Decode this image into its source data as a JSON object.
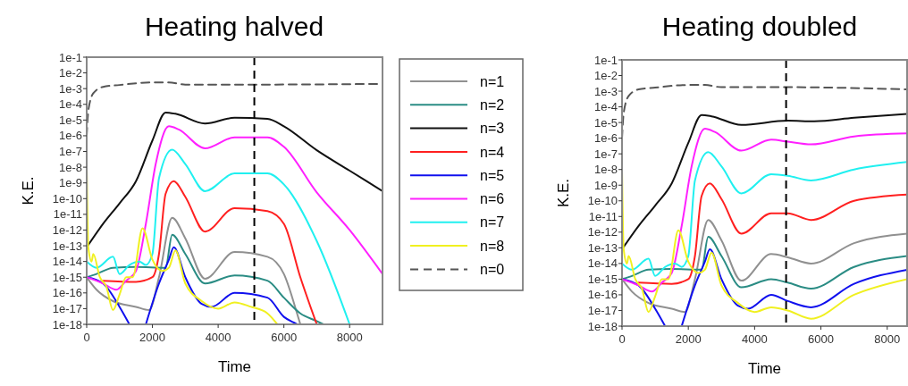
{
  "chart_data": [
    {
      "type": "line",
      "title": "Heating halved",
      "xlabel": "Time",
      "ylabel": "K.E.",
      "log": "y",
      "legend": "right",
      "xlim": [
        0,
        9000
      ],
      "xticks": [
        0,
        2000,
        4000,
        6000,
        8000
      ],
      "ylim": [
        1e-18,
        0.1
      ],
      "yticks": [
        {
          "value": 0.1,
          "label": "1e-1"
        },
        {
          "value": 0.01,
          "label": "1e-2"
        },
        {
          "value": 0.001,
          "label": "1e-3"
        },
        {
          "value": 0.0001,
          "label": "1e-4"
        },
        {
          "value": 1e-05,
          "label": "1e-5"
        },
        {
          "value": 1e-06,
          "label": "1e-6"
        },
        {
          "value": 1e-07,
          "label": "1e-7"
        },
        {
          "value": 1e-08,
          "label": "1e-8"
        },
        {
          "value": 1e-09,
          "label": "1e-9"
        },
        {
          "value": 1e-10,
          "label": "1e-10"
        },
        {
          "value": 1e-11,
          "label": "1e-11"
        },
        {
          "value": 1e-12,
          "label": "1e-12"
        },
        {
          "value": 1e-13,
          "label": "1e-13"
        },
        {
          "value": 1e-14,
          "label": "1e-14"
        },
        {
          "value": 1e-15,
          "label": "1e-15"
        },
        {
          "value": 1e-16,
          "label": "1e-16"
        },
        {
          "value": 1e-17,
          "label": "1e-17"
        },
        {
          "value": 1e-18,
          "label": "1e-18"
        }
      ],
      "ref_lines": [
        {
          "axis": "x",
          "value": 5100,
          "color": "#000000",
          "line_style": "dashed"
        }
      ],
      "series": [
        {
          "name": "n=1",
          "color": "#909090",
          "x": [
            0,
            300,
            800,
            1500,
            1900,
            2200,
            2600,
            3000,
            3600,
            4500,
            5500,
            6000,
            6400,
            6500
          ],
          "values": [
            1e-15,
            1.6e-16,
            3e-17,
            1.3e-17,
            8e-18,
            1e-15,
            6e-12,
            3e-13,
            8e-16,
            4e-14,
            2e-14,
            1.6e-15,
            5e-18,
            1e-18
          ]
        },
        {
          "name": "n=2",
          "color": "#2a8c84",
          "x": [
            0,
            300,
            800,
            1500,
            2400,
            2600,
            3000,
            3600,
            4500,
            5500,
            6000,
            6500,
            7000,
            7200
          ],
          "values": [
            1e-15,
            1.6e-15,
            4e-15,
            4.5e-15,
            4e-15,
            5e-13,
            3e-14,
            4e-16,
            1.3e-15,
            6e-16,
            5e-17,
            5e-18,
            1.6e-18,
            1e-18
          ]
        },
        {
          "name": "n=3",
          "color": "#111111",
          "x": [
            0,
            500,
            1000,
            1500,
            2000,
            2400,
            2700,
            3600,
            4500,
            5500,
            6000,
            7000,
            8000,
            9000
          ],
          "values": [
            8e-14,
            2.5e-12,
            5e-11,
            1.3e-09,
            5e-07,
            3e-05,
            2.5e-05,
            6e-06,
            1.4e-05,
            1.2e-05,
            4e-06,
            1.2e-07,
            6e-09,
            3e-10
          ]
        },
        {
          "name": "n=4",
          "color": "#ff2020",
          "x": [
            500,
            1500,
            2000,
            2200,
            2400,
            2650,
            3000,
            3600,
            4500,
            5500,
            6000,
            6500,
            7000
          ],
          "values": [
            6e-16,
            5e-16,
            1e-15,
            3e-14,
            2e-10,
            1.3e-09,
            1.3e-10,
            8e-13,
            2.5e-11,
            1.6e-11,
            2.5e-12,
            1e-15,
            1e-18
          ]
        },
        {
          "name": "n=5",
          "color": "#1010ee",
          "x": [
            0,
            500,
            1000,
            1300,
            1550,
            1800,
            2200,
            2500,
            2650,
            3000,
            3500,
            3800,
            4500,
            5500,
            6000,
            6300,
            6400
          ],
          "values": [
            1e-15,
            4e-16,
            1.3e-17,
            1e-18,
            null,
            1e-18,
            4e-16,
            1.3e-14,
            8e-14,
            1e-15,
            2e-17,
            1.3e-17,
            1e-16,
            5e-17,
            3e-18,
            1.3e-18,
            1e-18
          ]
        },
        {
          "name": "n=6",
          "color": "#ff20ff",
          "x": [
            0,
            500,
            900,
            1200,
            1500,
            1800,
            2100,
            2500,
            2800,
            3600,
            4500,
            5500,
            6000,
            7000,
            8000,
            9000
          ],
          "values": [
            1e-15,
            4e-16,
            1.6e-16,
            6e-16,
            2.5e-15,
            2.5e-12,
            1.6e-08,
            4e-06,
            2.5e-06,
            1.6e-07,
            8e-07,
            8e-07,
            2e-07,
            2.5e-10,
            1e-12,
            1.6e-15
          ]
        },
        {
          "name": "n=7",
          "color": "#20f0f0",
          "x": [
            0,
            300,
            800,
            1000,
            1300,
            1600,
            1800,
            2000,
            2200,
            2600,
            3000,
            3600,
            4500,
            5500,
            6000,
            7000,
            8000
          ],
          "values": [
            1e-14,
            4e-15,
            2e-14,
            1.6e-15,
            6e-15,
            1e-14,
            6e-15,
            3e-14,
            2e-09,
            1.3e-07,
            1.6e-08,
            3e-10,
            4e-09,
            4e-09,
            8e-10,
            2e-13,
            1e-18
          ]
        },
        {
          "name": "n=8",
          "color": "#f0f020",
          "x": [
            0,
            50,
            150,
            200,
            400,
            600,
            800,
            1000,
            1200,
            1400,
            1700,
            2000,
            2300,
            2500,
            2700,
            3000,
            3500,
            4000,
            4500,
            5000,
            5500,
            5800
          ],
          "values": [
            1e-08,
            8e-14,
            1e-14,
            3e-14,
            1e-15,
            2.5e-16,
            8e-18,
            8e-17,
            1e-15,
            1e-15,
            1.3e-12,
            1.3e-14,
            2.5e-15,
            4e-15,
            5e-14,
            4e-16,
            3e-17,
            1e-17,
            2.5e-17,
            1.3e-17,
            5e-18,
            1e-18
          ]
        },
        {
          "name": "n=0",
          "color": "#555555",
          "line_style": "dashed",
          "x": [
            0,
            50,
            200,
            500,
            1000,
            2000,
            2500,
            3000,
            5000,
            9000
          ],
          "values": [
            1e-06,
            4e-05,
            0.0005,
            0.0013,
            0.0017,
            0.0025,
            0.0025,
            0.0018,
            0.0018,
            0.002
          ]
        }
      ]
    },
    {
      "type": "line",
      "title": "Heating doubled",
      "xlabel": "Time",
      "ylabel": "K.E.",
      "log": "y",
      "xlim": [
        0,
        8600
      ],
      "xticks": [
        0,
        2000,
        4000,
        6000,
        8000
      ],
      "ylim": [
        1e-18,
        0.1
      ],
      "yticks": [
        {
          "value": 0.1,
          "label": "1e-1"
        },
        {
          "value": 0.01,
          "label": "1e-2"
        },
        {
          "value": 0.001,
          "label": "1e-3"
        },
        {
          "value": 0.0001,
          "label": "1e-4"
        },
        {
          "value": 1e-05,
          "label": "1e-5"
        },
        {
          "value": 1e-06,
          "label": "1e-6"
        },
        {
          "value": 1e-07,
          "label": "1e-7"
        },
        {
          "value": 1e-08,
          "label": "1e-8"
        },
        {
          "value": 1e-09,
          "label": "1e-9"
        },
        {
          "value": 1e-10,
          "label": "1e-10"
        },
        {
          "value": 1e-11,
          "label": "1e-11"
        },
        {
          "value": 1e-12,
          "label": "1e-12"
        },
        {
          "value": 1e-13,
          "label": "1e-13"
        },
        {
          "value": 1e-14,
          "label": "1e-14"
        },
        {
          "value": 1e-15,
          "label": "1e-15"
        },
        {
          "value": 1e-16,
          "label": "1e-16"
        },
        {
          "value": 1e-17,
          "label": "1e-17"
        },
        {
          "value": 1e-18,
          "label": "1e-18"
        }
      ],
      "ref_lines": [
        {
          "axis": "x",
          "value": 4950,
          "color": "#000000",
          "line_style": "dashed"
        }
      ],
      "series": [
        {
          "color": "#909090",
          "x": [
            0,
            300,
            800,
            1500,
            1900,
            2200,
            2600,
            3000,
            3600,
            4500,
            5000,
            5700,
            7000,
            8600
          ],
          "values": [
            1e-15,
            1.6e-16,
            3e-17,
            1.3e-17,
            8e-18,
            1e-15,
            6e-12,
            3e-13,
            8e-16,
            4e-14,
            2.5e-14,
            1e-14,
            2e-13,
            8e-13
          ]
        },
        {
          "color": "#2a8c84",
          "x": [
            0,
            300,
            800,
            1500,
            2400,
            2600,
            3000,
            3600,
            4500,
            5000,
            5700,
            7000,
            8600
          ],
          "values": [
            1e-15,
            1.6e-15,
            4e-15,
            4.5e-15,
            4e-15,
            5e-13,
            3e-14,
            3e-16,
            1e-15,
            6e-16,
            2.5e-16,
            6e-15,
            3e-14
          ]
        },
        {
          "color": "#111111",
          "x": [
            0,
            500,
            1000,
            1500,
            2000,
            2400,
            2700,
            3600,
            5000,
            5800,
            7000,
            8600
          ],
          "values": [
            8e-14,
            2.5e-12,
            5e-11,
            1.3e-09,
            5e-07,
            3e-05,
            2.5e-05,
            7e-06,
            1.3e-05,
            1.2e-05,
            2e-05,
            3.5e-05
          ]
        },
        {
          "color": "#ff2020",
          "x": [
            500,
            1500,
            2000,
            2200,
            2400,
            2650,
            3000,
            3600,
            4500,
            5000,
            5700,
            7000,
            8600
          ],
          "values": [
            6e-16,
            5e-16,
            1e-15,
            3e-14,
            2e-10,
            1.3e-09,
            1.3e-10,
            8e-13,
            1.6e-11,
            1.6e-11,
            6e-12,
            1e-10,
            2.5e-10
          ]
        },
        {
          "color": "#1010ee",
          "x": [
            0,
            500,
            1000,
            1300,
            1550,
            1800,
            2200,
            2500,
            2650,
            3000,
            3500,
            3800,
            4500,
            5000,
            5700,
            7000,
            8600
          ],
          "values": [
            1e-15,
            4e-16,
            1.3e-17,
            1e-18,
            null,
            1e-18,
            4e-16,
            1.3e-14,
            8e-14,
            1e-15,
            2e-17,
            1.3e-17,
            1e-16,
            4e-17,
            1.6e-17,
            5e-16,
            4e-15
          ]
        },
        {
          "color": "#ff20ff",
          "x": [
            0,
            500,
            900,
            1200,
            1500,
            1800,
            2100,
            2500,
            2800,
            3600,
            4500,
            5000,
            5700,
            7000,
            8600
          ],
          "values": [
            1e-15,
            4e-16,
            1.6e-16,
            6e-16,
            2.5e-15,
            2.5e-12,
            1.6e-08,
            4e-06,
            2.5e-06,
            1.6e-07,
            8e-07,
            6e-07,
            4e-07,
            1.3e-06,
            2e-06
          ]
        },
        {
          "color": "#20f0f0",
          "x": [
            0,
            300,
            800,
            1000,
            1300,
            1600,
            1800,
            2000,
            2200,
            2600,
            3000,
            3600,
            4500,
            5000,
            5700,
            7000,
            8600
          ],
          "values": [
            1e-14,
            4e-15,
            2e-14,
            1.6e-15,
            6e-15,
            1e-14,
            6e-15,
            3e-14,
            2e-09,
            1.3e-07,
            1.6e-08,
            3e-10,
            5e-09,
            4e-09,
            2e-09,
            1e-08,
            3e-08
          ]
        },
        {
          "color": "#f0f020",
          "x": [
            0,
            50,
            150,
            200,
            400,
            600,
            800,
            1000,
            1200,
            1400,
            1700,
            2000,
            2300,
            2500,
            2700,
            3000,
            3500,
            4000,
            4500,
            5000,
            5700,
            7000,
            8600
          ],
          "values": [
            1e-08,
            8e-14,
            1e-14,
            3e-14,
            1e-15,
            2.5e-16,
            8e-18,
            8e-17,
            1e-15,
            1e-15,
            1.3e-12,
            1.3e-14,
            2.5e-15,
            4e-15,
            5e-14,
            4e-16,
            3e-17,
            8e-18,
            1.6e-17,
            1e-17,
            3e-18,
            1e-16,
            1e-15
          ]
        },
        {
          "color": "#555555",
          "line_style": "dashed",
          "x": [
            0,
            50,
            200,
            500,
            1000,
            2000,
            2500,
            3000,
            5000,
            8600
          ],
          "values": [
            1e-06,
            4e-05,
            0.0005,
            0.0013,
            0.0017,
            0.0025,
            0.0025,
            0.0018,
            0.0018,
            0.0013
          ]
        }
      ]
    }
  ]
}
